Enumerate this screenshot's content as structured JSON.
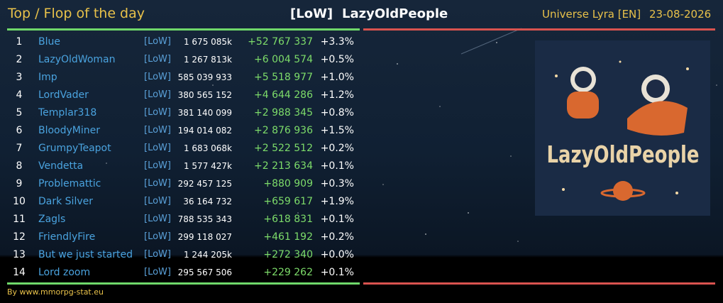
{
  "header": {
    "title": "Top / Flop of the day",
    "alliance_tag": "[LoW]",
    "alliance_name": "LazyOldPeople",
    "universe": "Universe Lyra [EN]",
    "date": "23-08-2026"
  },
  "table": {
    "rows": [
      [
        1,
        "Blue",
        "[LoW]",
        "1 675 085k",
        "+52 767 337",
        "+3.3%"
      ],
      [
        2,
        "LazyOldWoman",
        "[LoW]",
        "1 267 813k",
        "+6 004 574",
        "+0.5%"
      ],
      [
        3,
        "Imp",
        "[LoW]",
        "585 039 933",
        "+5 518 977",
        "+1.0%"
      ],
      [
        4,
        "LordVader",
        "[LoW]",
        "380 565 152",
        "+4 644 286",
        "+1.2%"
      ],
      [
        5,
        "Templar318",
        "[LoW]",
        "381 140 099",
        "+2 988 345",
        "+0.8%"
      ],
      [
        6,
        "BloodyMiner",
        "[LoW]",
        "194 014 082",
        "+2 876 936",
        "+1.5%"
      ],
      [
        7,
        "GrumpyTeapot",
        "[LoW]",
        "1 683 068k",
        "+2 522 512",
        "+0.2%"
      ],
      [
        8,
        "Vendetta",
        "[LoW]",
        "1 577 427k",
        "+2 213 634",
        "+0.1%"
      ],
      [
        9,
        "Problemattic",
        "[LoW]",
        "292 457 125",
        "+880 909",
        "+0.3%"
      ],
      [
        10,
        "Dark Silver",
        "[LoW]",
        "36 164 732",
        "+659 617",
        "+1.9%"
      ],
      [
        11,
        "Zagls",
        "[LoW]",
        "788 535 343",
        "+618 831",
        "+0.1%"
      ],
      [
        12,
        "FriendlyFire",
        "[LoW]",
        "299 118 027",
        "+461 192",
        "+0.2%"
      ],
      [
        13,
        "But we just started",
        "[LoW]",
        "1 244 205k",
        "+272 340",
        "+0.0%"
      ],
      [
        14,
        "Lord zoom",
        "[LoW]",
        "295 567 506",
        "+229 262",
        "+0.1%"
      ]
    ]
  },
  "logo": {
    "text": "LazyOldPeople"
  },
  "footer": {
    "credit": "By www.mmorpg-stat.eu"
  }
}
